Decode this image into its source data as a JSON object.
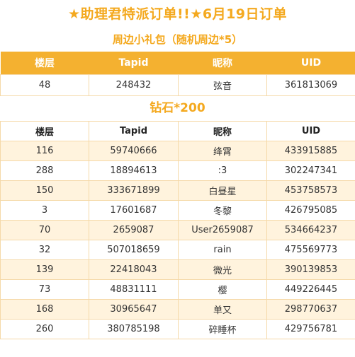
{
  "title": "★助理君特派订单!!★6月19日订单",
  "section1": {
    "title": "周边小礼包（随机周边*5）",
    "headers": [
      "楼层",
      "Tapid",
      "昵称",
      "UID"
    ],
    "rows": [
      [
        "48",
        "248432",
        "弦音",
        "361813069"
      ]
    ]
  },
  "section2": {
    "title": "钻石*200",
    "headers": [
      "楼层",
      "Tapid",
      "昵称",
      "UID"
    ],
    "rows": [
      [
        "116",
        "59740666",
        "绛霄",
        "433915885"
      ],
      [
        "288",
        "18894613",
        ":3",
        "302247341"
      ],
      [
        "150",
        "333671899",
        "白昼星",
        "453758573"
      ],
      [
        "3",
        "17601687",
        "冬黎",
        "426795085"
      ],
      [
        "70",
        "2659087",
        "User2659087",
        "534664237"
      ],
      [
        "32",
        "507018659",
        "rain",
        "475569773"
      ],
      [
        "139",
        "22418043",
        "微光",
        "390139853"
      ],
      [
        "73",
        "48831111",
        "樱",
        "449226445"
      ],
      [
        "168",
        "30965647",
        "单又",
        "298770637"
      ],
      [
        "260",
        "380785198",
        "碎睡杯",
        "429756781"
      ]
    ]
  },
  "colors": {
    "accent": "#f4b130",
    "title_text": "#f4a91f",
    "row_alt": "#fff3dd",
    "border": "#f5d9a8"
  }
}
